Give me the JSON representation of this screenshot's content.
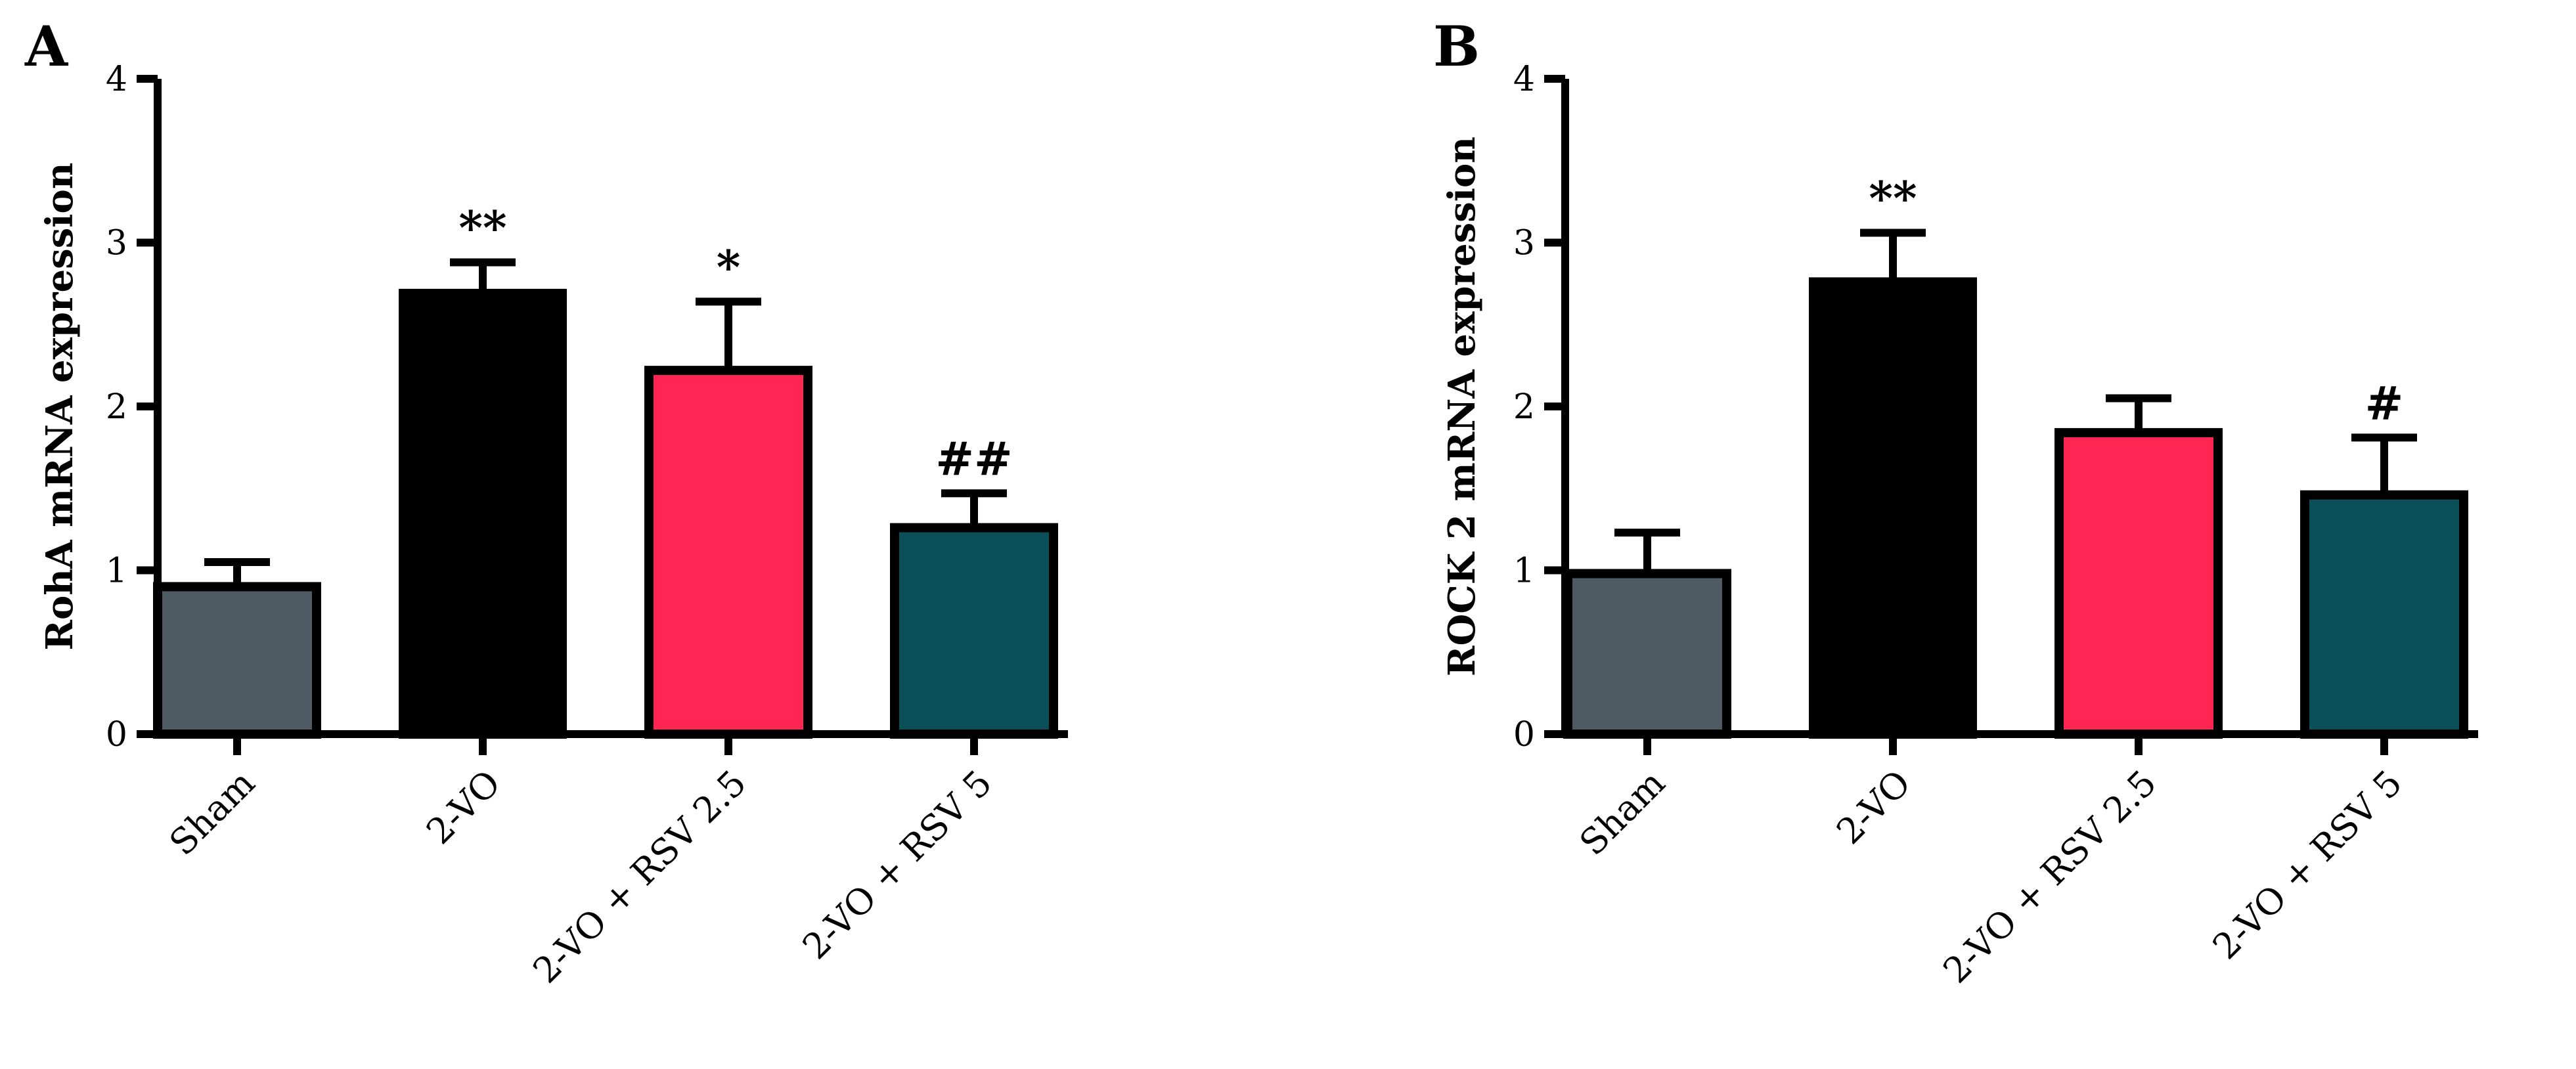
{
  "chart_data": [
    {
      "type": "bar",
      "panel": "A",
      "categories": [
        "Sham",
        "2-VO",
        "2-VO + RSV 2.5",
        "2-VO + RSV 5"
      ],
      "values": [
        0.9,
        2.69,
        2.22,
        1.26
      ],
      "errors": [
        0.15,
        0.19,
        0.42,
        0.21
      ],
      "significance": [
        "",
        "**",
        "*",
        "##"
      ],
      "colors": [
        "#4e5b63",
        "#000000",
        "#ff2654",
        "#0b4f58"
      ],
      "xlabel": "",
      "ylabel": "RohA mRNA expression",
      "yticks": [
        "0",
        "1",
        "2",
        "3",
        "4"
      ],
      "ylim": [
        0,
        4
      ],
      "grid": false
    },
    {
      "type": "bar",
      "panel": "B",
      "categories": [
        "Sham",
        "2-VO",
        "2-VO + RSV 2.5",
        "2-VO + RSV 5"
      ],
      "values": [
        0.98,
        2.76,
        1.84,
        1.46
      ],
      "errors": [
        0.25,
        0.3,
        0.21,
        0.35
      ],
      "significance": [
        "",
        "**",
        "",
        "#"
      ],
      "colors": [
        "#4e5b63",
        "#000000",
        "#ff2654",
        "#0b4f58"
      ],
      "xlabel": "",
      "ylabel": "ROCK 2 mRNA expression",
      "yticks": [
        "0",
        "1",
        "2",
        "3",
        "4"
      ],
      "ylim": [
        0,
        4
      ],
      "grid": false
    }
  ]
}
